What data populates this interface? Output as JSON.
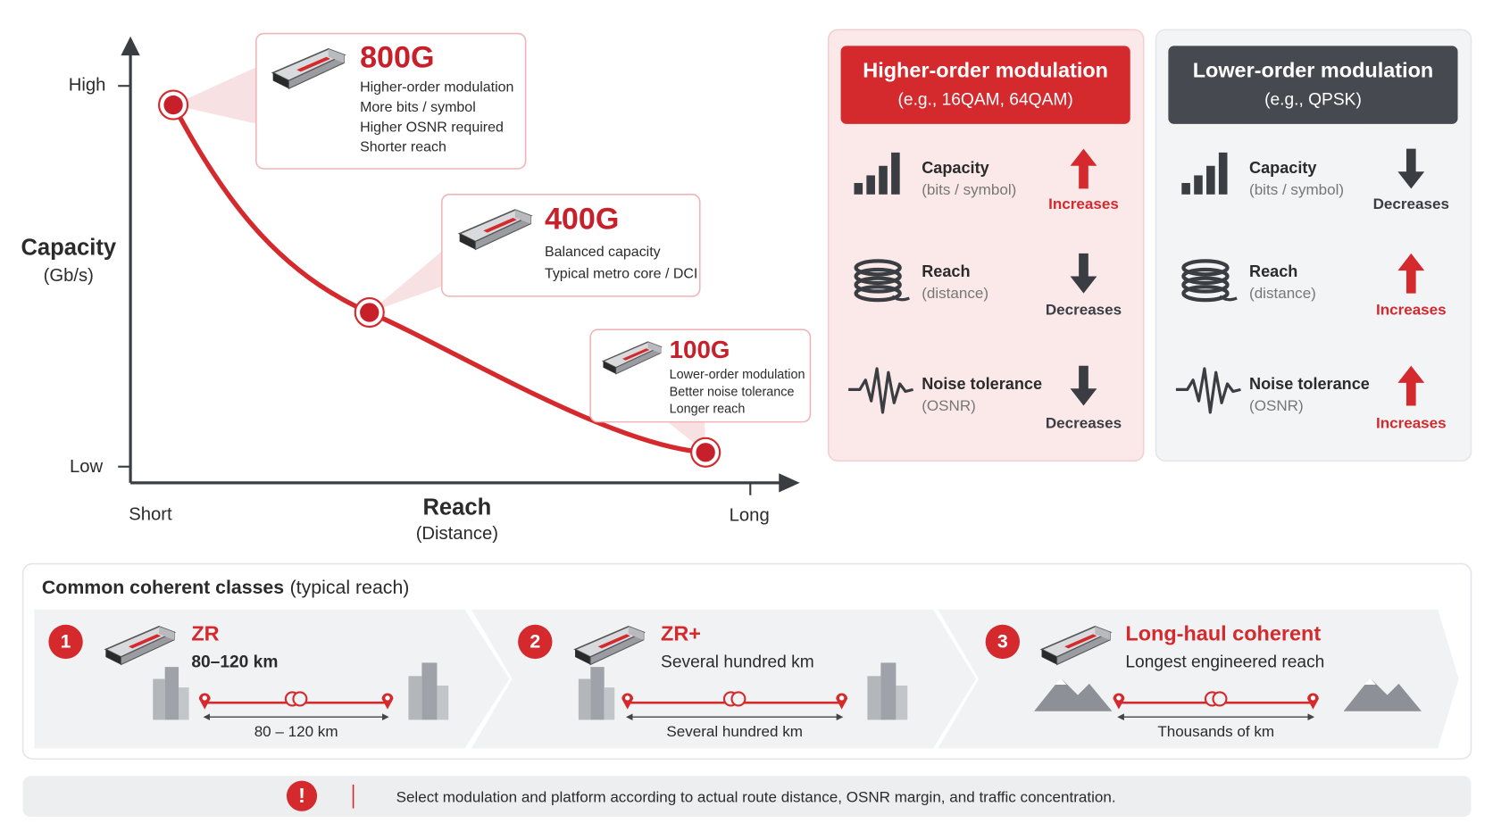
{
  "chart": {
    "y_axis": {
      "label": "Capacity",
      "unit": "(Gb/s)",
      "high": "High",
      "low": "Low"
    },
    "x_axis": {
      "label": "Reach",
      "unit": "(Distance)",
      "short": "Short",
      "long": "Long"
    },
    "callouts": [
      {
        "title": "800G",
        "lines": [
          "Higher-order modulation",
          "More bits / symbol",
          "Higher OSNR required",
          "Shorter reach"
        ]
      },
      {
        "title": "400G",
        "lines": [
          "Balanced capacity",
          "Typical metro core / DCI"
        ]
      },
      {
        "title": "100G",
        "lines": [
          "Lower-order modulation",
          "Better noise tolerance",
          "Longer reach"
        ]
      }
    ]
  },
  "panels": [
    {
      "title": "Higher-order modulation",
      "subtitle": "(e.g., 16QAM, 64QAM)",
      "color": "#d42a2e",
      "rows": [
        {
          "label": "Capacity",
          "sub": "(bits / symbol)",
          "status": "Increases",
          "color": "#d42a2e"
        },
        {
          "label": "Reach",
          "sub": "(distance)",
          "status": "Decreases",
          "color": "#3a3d42"
        },
        {
          "label": "Noise tolerance",
          "sub": "(OSNR)",
          "status": "Decreases",
          "color": "#3a3d42"
        }
      ]
    },
    {
      "title": "Lower-order modulation",
      "subtitle": "(e.g., QPSK)",
      "color": "#464a50",
      "rows": [
        {
          "label": "Capacity",
          "sub": "(bits / symbol)",
          "status": "Decreases",
          "color": "#3a3d42"
        },
        {
          "label": "Reach",
          "sub": "(distance)",
          "status": "Increases",
          "color": "#d42a2e"
        },
        {
          "label": "Noise tolerance",
          "sub": "(OSNR)",
          "status": "Increases",
          "color": "#d42a2e"
        }
      ]
    }
  ],
  "classes": {
    "heading": "Common coherent classes",
    "heading_note": "(typical reach)",
    "items": [
      {
        "number": "1",
        "name": "ZR",
        "reach": "80–120 km",
        "span": "80 – 120 km"
      },
      {
        "number": "2",
        "name": "ZR+",
        "reach": "Several hundred km",
        "span": "Several hundred km"
      },
      {
        "number": "3",
        "name": "Long-haul coherent",
        "reach": "Longest engineered reach",
        "span": "Thousands of km"
      }
    ]
  },
  "note": {
    "icon": "!",
    "text": "Select modulation and platform according to actual route distance, OSNR margin, and traffic concentration."
  }
}
